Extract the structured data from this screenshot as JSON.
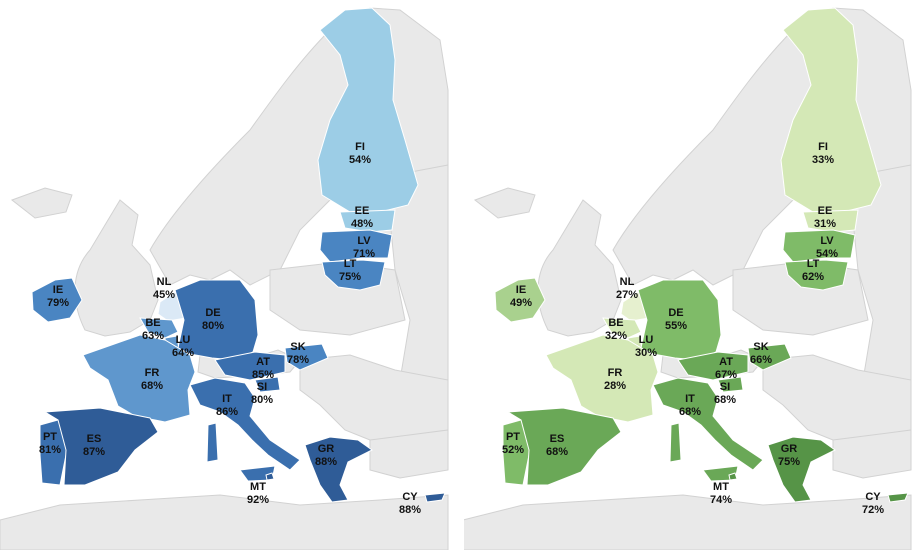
{
  "maps": [
    {
      "name": "left-map",
      "palette": "blue",
      "countries": [
        {
          "code": "FI",
          "value": "54%",
          "level": 1
        },
        {
          "code": "EE",
          "value": "48%",
          "level": 1
        },
        {
          "code": "LV",
          "value": "71%",
          "level": 3
        },
        {
          "code": "LT",
          "value": "75%",
          "level": 3
        },
        {
          "code": "IE",
          "value": "79%",
          "level": 3
        },
        {
          "code": "NL",
          "value": "45%",
          "level": 0
        },
        {
          "code": "BE",
          "value": "63%",
          "level": 2
        },
        {
          "code": "LU",
          "value": "64%",
          "level": 2
        },
        {
          "code": "DE",
          "value": "80%",
          "level": 4
        },
        {
          "code": "FR",
          "value": "68%",
          "level": 2
        },
        {
          "code": "SK",
          "value": "78%",
          "level": 3
        },
        {
          "code": "AT",
          "value": "85%",
          "level": 4
        },
        {
          "code": "SI",
          "value": "80%",
          "level": 4
        },
        {
          "code": "IT",
          "value": "86%",
          "level": 4
        },
        {
          "code": "PT",
          "value": "81%",
          "level": 4
        },
        {
          "code": "ES",
          "value": "87%",
          "level": 5
        },
        {
          "code": "GR",
          "value": "88%",
          "level": 5
        },
        {
          "code": "MT",
          "value": "92%",
          "level": 5
        },
        {
          "code": "CY",
          "value": "88%",
          "level": 5
        }
      ]
    },
    {
      "name": "right-map",
      "palette": "green",
      "countries": [
        {
          "code": "FI",
          "value": "33%",
          "level": 1
        },
        {
          "code": "EE",
          "value": "31%",
          "level": 1
        },
        {
          "code": "LV",
          "value": "54%",
          "level": 3
        },
        {
          "code": "LT",
          "value": "62%",
          "level": 3
        },
        {
          "code": "IE",
          "value": "49%",
          "level": 2
        },
        {
          "code": "NL",
          "value": "27%",
          "level": 0
        },
        {
          "code": "BE",
          "value": "32%",
          "level": 1
        },
        {
          "code": "LU",
          "value": "30%",
          "level": 1
        },
        {
          "code": "DE",
          "value": "55%",
          "level": 3
        },
        {
          "code": "FR",
          "value": "28%",
          "level": 1
        },
        {
          "code": "SK",
          "value": "66%",
          "level": 4
        },
        {
          "code": "AT",
          "value": "67%",
          "level": 4
        },
        {
          "code": "SI",
          "value": "68%",
          "level": 4
        },
        {
          "code": "IT",
          "value": "68%",
          "level": 4
        },
        {
          "code": "PT",
          "value": "52%",
          "level": 3
        },
        {
          "code": "ES",
          "value": "68%",
          "level": 4
        },
        {
          "code": "GR",
          "value": "75%",
          "level": 5
        },
        {
          "code": "MT",
          "value": "74%",
          "level": 5
        },
        {
          "code": "CY",
          "value": "72%",
          "level": 5
        }
      ]
    }
  ],
  "palettes": {
    "blue": [
      "#dbe9f6",
      "#9ccde6",
      "#5f97cd",
      "#4a85c2",
      "#3a6fae",
      "#2f5c97"
    ],
    "green": [
      "#e6f0cf",
      "#d4e8b6",
      "#a9d18e",
      "#7fbb68",
      "#6aa857",
      "#569447"
    ],
    "land": "#e9e9e9",
    "border": "#ffffff",
    "sea": "#ffffff"
  }
}
